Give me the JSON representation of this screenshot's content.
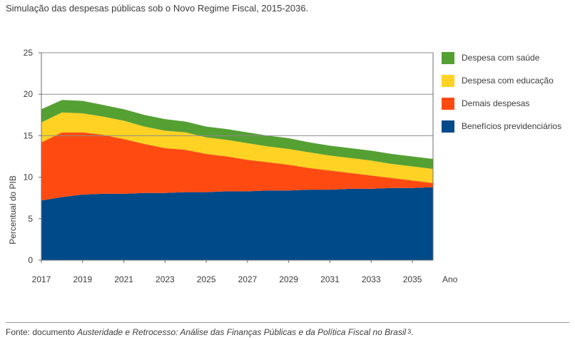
{
  "title": "Simulação das despesas públicas sob o Novo Regime Fiscal, 2015-2036.",
  "source": {
    "prefix": "Fonte: documento ",
    "italic": "Austeridade e Retrocesso: Análise das Finanças Públicas e da Política Fiscal no Brasil",
    "note": "3",
    "suffix": "."
  },
  "chart_data": {
    "type": "area",
    "stacked": true,
    "ylabel": "Percentual do PIB",
    "xlabel": "Ano",
    "ylim": [
      0,
      25
    ],
    "xlim": [
      2017,
      2036
    ],
    "yticks": [
      0,
      5,
      10,
      15,
      20,
      25
    ],
    "xticks": [
      2017,
      2019,
      2021,
      2023,
      2025,
      2027,
      2029,
      2031,
      2033,
      2035
    ],
    "gridlines": [
      15,
      20,
      25
    ],
    "legend_position": "right",
    "x": [
      2017,
      2018,
      2019,
      2020,
      2021,
      2022,
      2023,
      2024,
      2025,
      2026,
      2027,
      2028,
      2029,
      2030,
      2031,
      2032,
      2033,
      2034,
      2035,
      2036
    ],
    "series": [
      {
        "name": "Benefícios previdenciários",
        "color": "#004a8a",
        "values": [
          7.2,
          7.6,
          7.9,
          8.0,
          8.0,
          8.1,
          8.1,
          8.2,
          8.2,
          8.3,
          8.3,
          8.4,
          8.4,
          8.5,
          8.5,
          8.6,
          8.6,
          8.7,
          8.7,
          8.8
        ]
      },
      {
        "name": "Demais despesas",
        "color": "#ff4a12",
        "values": [
          7.0,
          7.8,
          7.5,
          7.1,
          6.6,
          5.9,
          5.4,
          5.1,
          4.6,
          4.2,
          3.8,
          3.4,
          3.1,
          2.6,
          2.3,
          1.9,
          1.6,
          1.2,
          0.9,
          0.5
        ]
      },
      {
        "name": "Despesa com educação",
        "color": "#ffd223",
        "values": [
          2.4,
          2.4,
          2.3,
          2.2,
          2.2,
          2.1,
          2.1,
          2.1,
          2.0,
          2.0,
          2.0,
          1.9,
          1.9,
          1.9,
          1.8,
          1.8,
          1.8,
          1.7,
          1.7,
          1.7
        ]
      },
      {
        "name": "Despesa com saúde",
        "color": "#55a033",
        "values": [
          1.6,
          1.5,
          1.5,
          1.4,
          1.4,
          1.4,
          1.4,
          1.3,
          1.3,
          1.3,
          1.3,
          1.3,
          1.3,
          1.2,
          1.2,
          1.2,
          1.2,
          1.2,
          1.2,
          1.2
        ]
      }
    ]
  }
}
